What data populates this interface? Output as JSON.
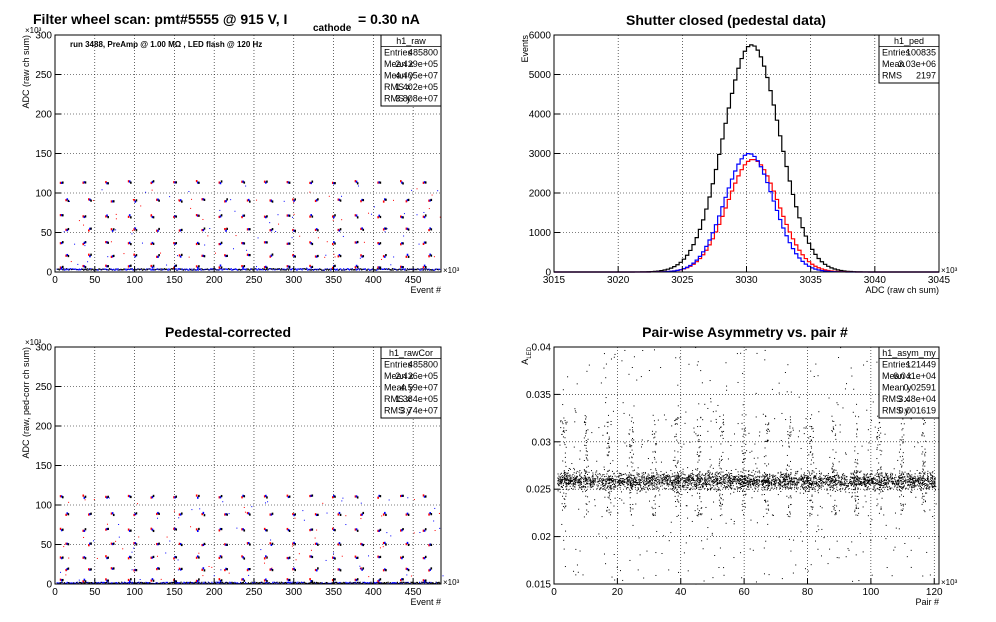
{
  "chart_data": [
    {
      "type": "scatter",
      "title": "Filter wheel scan: pmt#5555 @   915 V, I",
      "title_sub": "cathode",
      "title_tail": "= 0.30 nA",
      "annotation": "run 3488, PreAmp @ 1.00 MΩ , LED flash @  120 Hz",
      "ylabel": "ADC (raw ch sum)",
      "xlabel": "Event #",
      "x_exponent": "×10³",
      "y_exponent": "×10³",
      "xlim": [
        0,
        485
      ],
      "ylim": [
        0,
        300
      ],
      "xticks": [
        0,
        50,
        100,
        150,
        200,
        250,
        300,
        350,
        400,
        450
      ],
      "yticks": [
        0,
        50,
        100,
        150,
        200,
        250,
        300
      ],
      "grid": true,
      "stats": {
        "name": "h1_raw",
        "rows": [
          [
            "Entries",
            "485800"
          ],
          [
            "Mean x",
            "2.429e+05"
          ],
          [
            "Mean y",
            "4.405e+07"
          ],
          [
            "RMS x",
            "1.402e+05"
          ],
          [
            "RMS y",
            "3.808e+07"
          ]
        ]
      },
      "pattern": {
        "period": 28.5,
        "levels": [
          115,
          92,
          72,
          55,
          38,
          22,
          8
        ],
        "baseline": 3,
        "marker_colors": [
          "#ff0000",
          "#0000ff",
          "#000000"
        ]
      }
    },
    {
      "type": "histogram",
      "title": "Shutter closed (pedestal data)",
      "ylabel": "Events",
      "xlabel": "ADC (raw ch sum)",
      "x_exponent": "×10³",
      "xlim": [
        3015,
        3045
      ],
      "ylim": [
        0,
        6000
      ],
      "xticks": [
        3015,
        3020,
        3025,
        3030,
        3035,
        3040,
        3045
      ],
      "yticks": [
        0,
        1000,
        2000,
        3000,
        4000,
        5000,
        6000
      ],
      "grid": true,
      "stats": {
        "name": "h1_ped",
        "rows": [
          [
            "Entries",
            "100835"
          ],
          [
            "Mean",
            "3.03e+06"
          ],
          [
            "RMS",
            "2197"
          ]
        ]
      },
      "series": [
        {
          "color": "#000000",
          "mean": 3030.4,
          "sigma": 2.2,
          "peak": 5750
        },
        {
          "color": "#ff0000",
          "mean": 3030.5,
          "sigma": 2.0,
          "peak": 2850
        },
        {
          "color": "#0000ff",
          "mean": 3030.2,
          "sigma": 1.9,
          "peak": 3000
        }
      ]
    },
    {
      "type": "scatter",
      "title": "Pedestal-corrected",
      "ylabel": "ADC (raw, ped-corr ch sum)",
      "xlabel": "Event #",
      "x_exponent": "×10³",
      "y_exponent": "×10³",
      "xlim": [
        0,
        485
      ],
      "ylim": [
        0,
        300
      ],
      "xticks": [
        0,
        50,
        100,
        150,
        200,
        250,
        300,
        350,
        400,
        450
      ],
      "yticks": [
        0,
        50,
        100,
        150,
        200,
        250,
        300
      ],
      "grid": true,
      "stats": {
        "name": "h1_rawCor",
        "rows": [
          [
            "Entries",
            "485800"
          ],
          [
            "Mean x",
            "2.426e+05"
          ],
          [
            "Mean y",
            "4.59e+07"
          ],
          [
            "RMS x",
            "1.384e+05"
          ],
          [
            "RMS y",
            "3.74e+07"
          ]
        ]
      },
      "pattern": {
        "period": 28.5,
        "levels": [
          112,
          90,
          70,
          52,
          35,
          20,
          6
        ],
        "baseline": 1,
        "marker_colors": [
          "#ff0000",
          "#0000ff",
          "#000000"
        ]
      }
    },
    {
      "type": "scatter",
      "title": "Pair-wise Asymmetry vs. pair #",
      "ylabel": "A",
      "ylabel_sub": "LED",
      "xlabel": "Pair #",
      "x_exponent": "×10³",
      "xlim": [
        0,
        121.5
      ],
      "ylim": [
        0.015,
        0.04
      ],
      "xticks": [
        0,
        20,
        40,
        60,
        80,
        100,
        120
      ],
      "yticks": [
        0.015,
        0.02,
        0.025,
        0.03,
        0.035,
        0.04
      ],
      "ytick_labels": [
        "0.015",
        "0.02",
        "0.025",
        "0.03",
        "0.035",
        "0.04"
      ],
      "grid": true,
      "stats": {
        "name": "h1_asym_my",
        "rows": [
          [
            "Entries",
            "121449"
          ],
          [
            "Mean x",
            "6.041e+04"
          ],
          [
            "Mean y",
            "0.02591"
          ],
          [
            "RMS x",
            "3.48e+04"
          ],
          [
            "RMS y",
            "0.001619"
          ]
        ]
      },
      "band": {
        "center": 0.0259,
        "halfwidth": 0.0009,
        "spike_period": 7.1,
        "spike_height": 0.0049
      }
    }
  ]
}
